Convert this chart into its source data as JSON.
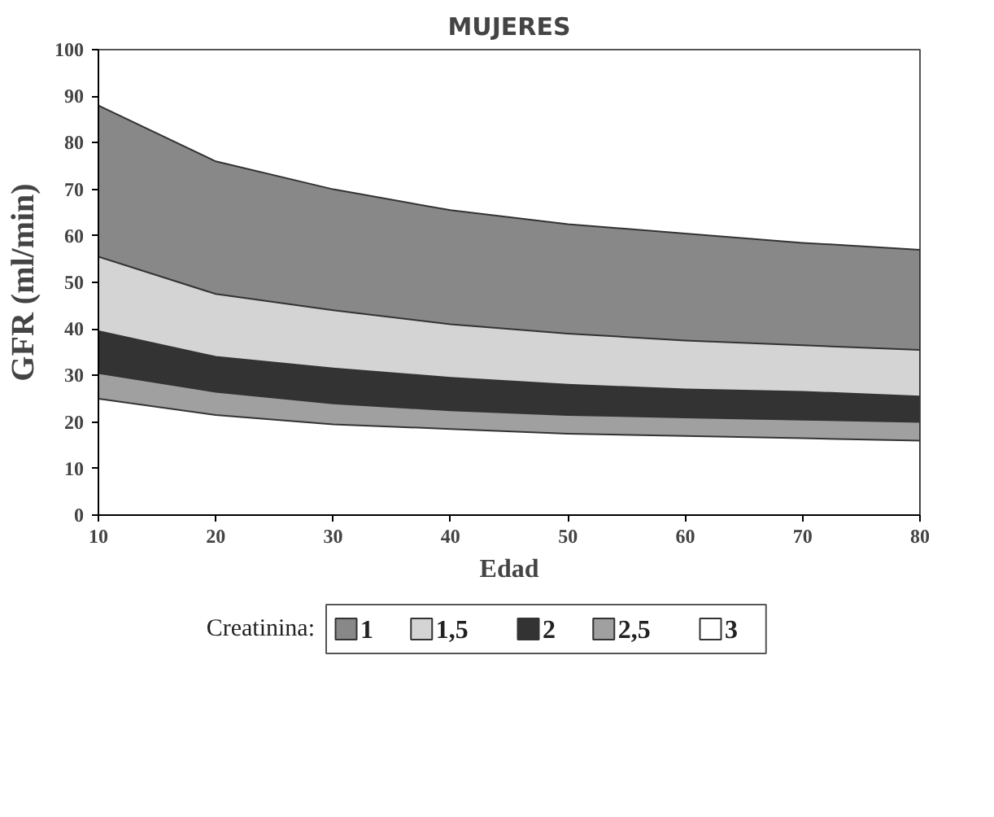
{
  "chart_data": {
    "type": "area",
    "title": "MUJERES",
    "xlabel": "Edad",
    "ylabel": "GFR (ml/min)",
    "legend_title": "Creatinina:",
    "x": [
      10,
      20,
      30,
      40,
      50,
      60,
      70,
      80
    ],
    "series": [
      {
        "name": "1",
        "color": "#888888",
        "values": [
          88,
          76,
          70,
          65.5,
          62.5,
          60.5,
          58.5,
          57
        ]
      },
      {
        "name": "1,5",
        "color": "#d4d4d4",
        "values": [
          55.5,
          47.5,
          44,
          41,
          39,
          37.5,
          36.5,
          35.5
        ]
      },
      {
        "name": "2",
        "color": "#333333",
        "values": [
          39.5,
          34,
          31.5,
          29.5,
          28,
          27,
          26.5,
          25.5
        ]
      },
      {
        "name": "2,5",
        "color": "#a0a0a0",
        "values": [
          30.5,
          26.5,
          24,
          22.5,
          21.5,
          21,
          20.5,
          20
        ]
      },
      {
        "name": "3",
        "color": "#ffffff",
        "values": [
          25,
          21.5,
          19.5,
          18.5,
          17.5,
          17,
          16.5,
          16
        ]
      }
    ],
    "xlim": [
      10,
      80
    ],
    "xticks": [
      10,
      20,
      30,
      40,
      50,
      60,
      70,
      80
    ],
    "ylim": [
      0,
      100
    ],
    "yticks": [
      0,
      10,
      20,
      30,
      40,
      50,
      60,
      70,
      80,
      90,
      100
    ],
    "legend": "bottom"
  }
}
